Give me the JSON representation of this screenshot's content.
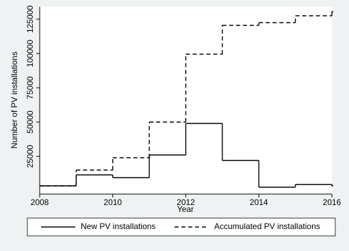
{
  "chart_data": {
    "type": "line",
    "step": "post",
    "x_label": "Year",
    "y_label": "Number of PV installations",
    "x": [
      2008,
      2009,
      2010,
      2011,
      2012,
      2013,
      2014,
      2015,
      2016
    ],
    "series": [
      {
        "name": "New PV installations",
        "color": "#000000",
        "style": "solid",
        "values": [
          3500,
          11500,
          9500,
          26000,
          49000,
          22000,
          2500,
          4500,
          3500
        ]
      },
      {
        "name": "Accumulated PV installations",
        "color": "#000000",
        "style": "dashed",
        "values": [
          3500,
          15000,
          24000,
          50000,
          99500,
          120500,
          122500,
          127500,
          130500
        ]
      }
    ],
    "xlim": [
      2008,
      2016
    ],
    "xticks": [
      2008,
      2010,
      2012,
      2014,
      2016
    ],
    "ylim": [
      -2500,
      134000
    ],
    "yticks": [
      25000,
      50000,
      75000,
      100000,
      125000
    ],
    "legend": "bottom"
  }
}
